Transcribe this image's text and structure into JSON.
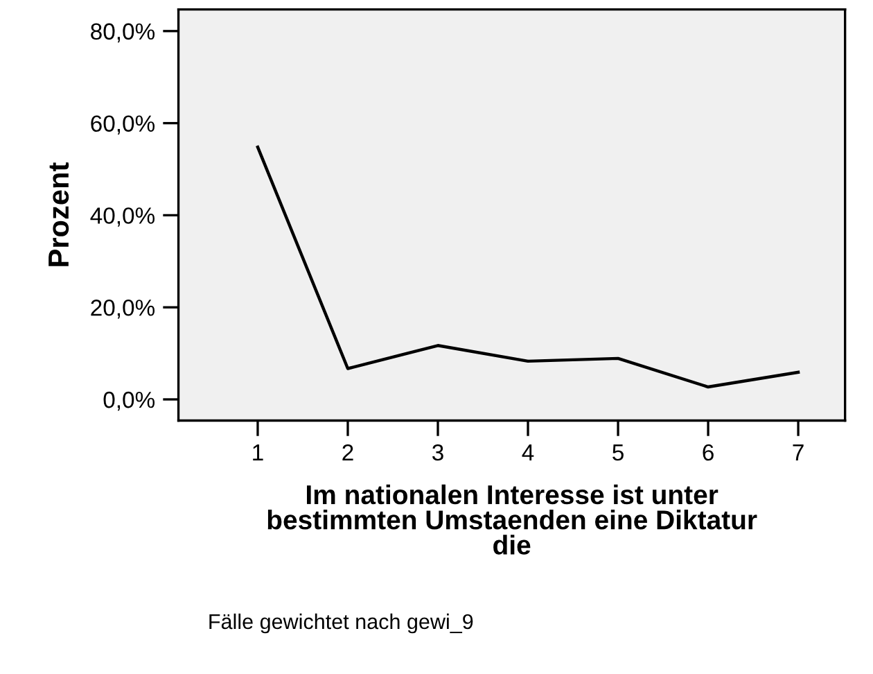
{
  "chart_data": {
    "type": "line",
    "categories": [
      "1",
      "2",
      "3",
      "4",
      "5",
      "6",
      "7"
    ],
    "series": [
      {
        "color": "#000000",
        "values": [
          54.8,
          6.7,
          11.7,
          8.3,
          8.9,
          2.7,
          5.9
        ]
      }
    ],
    "ylabel": "Prozent",
    "xlabel": "Im nationalen Interesse ist unter\nbestimmten Umstaenden eine Diktatur\ndie",
    "ylim": [
      -4.6,
      84.7
    ],
    "yticks": [
      {
        "value": 0,
        "label": "0,0%"
      },
      {
        "value": 20,
        "label": "20,0%"
      },
      {
        "value": 40,
        "label": "40,0%"
      },
      {
        "value": 60,
        "label": "60,0%"
      },
      {
        "value": 80,
        "label": "80,0%"
      }
    ],
    "grid": false,
    "legend": false,
    "marker": "none",
    "line_style": "solid",
    "annotations": [
      "Fälle gewichtet nach gewi_9"
    ]
  }
}
